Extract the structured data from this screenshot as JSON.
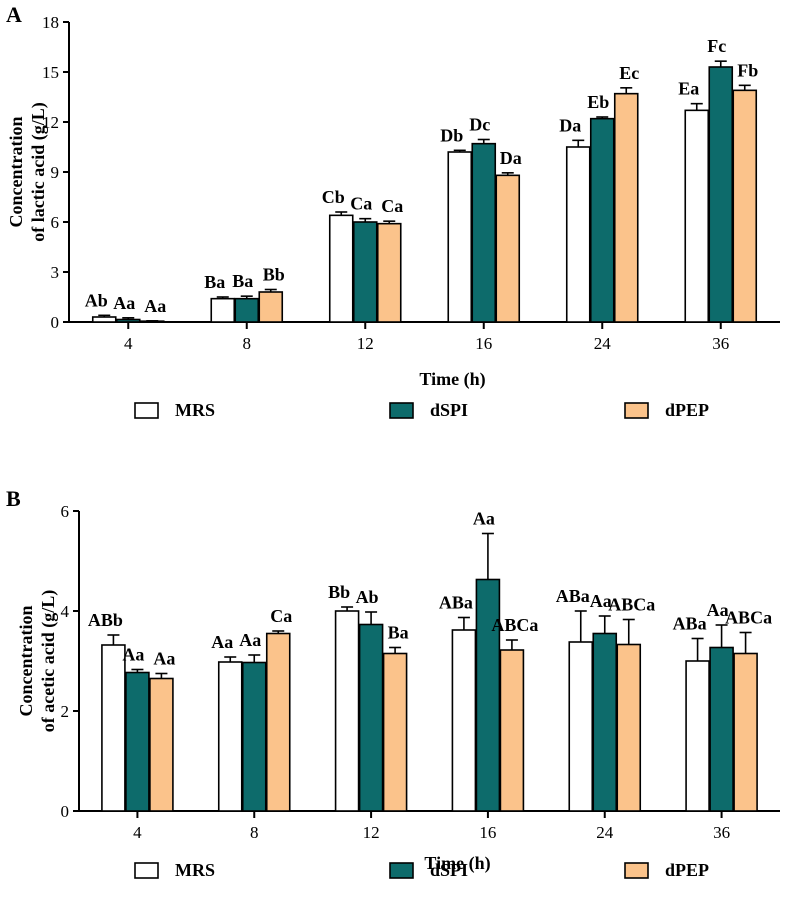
{
  "chart_data": [
    {
      "type": "bar",
      "panel": "A",
      "categories": [
        "4",
        "8",
        "12",
        "16",
        "24",
        "36"
      ],
      "xlabel": "Time (h)",
      "ylabel_line1": "Concentration",
      "ylabel_line2": "of lactic acid (g/L)",
      "ylim": [
        0,
        18
      ],
      "yticks": [
        0,
        3,
        6,
        9,
        12,
        15,
        18
      ],
      "series": [
        {
          "name": "MRS",
          "color": "#ffffff",
          "values": [
            0.3,
            1.4,
            6.4,
            10.2,
            10.5,
            12.7
          ],
          "errors": [
            0.1,
            0.1,
            0.2,
            0.1,
            0.4,
            0.4
          ],
          "labels": [
            "Ab",
            "Ba",
            "Cb",
            "Db",
            "Da",
            "Ea"
          ]
        },
        {
          "name": "dSPI",
          "color": "#0d6b6b",
          "values": [
            0.15,
            1.4,
            6.0,
            10.7,
            12.2,
            15.3
          ],
          "errors": [
            0.1,
            0.15,
            0.2,
            0.25,
            0.1,
            0.35
          ],
          "labels": [
            "Aa",
            "Ba",
            "Ca",
            "Dc",
            "Eb",
            "Fc"
          ]
        },
        {
          "name": "dPEP",
          "color": "#fbc38b",
          "values": [
            0.05,
            1.8,
            5.9,
            8.8,
            13.7,
            13.9
          ],
          "errors": [
            0.02,
            0.15,
            0.15,
            0.15,
            0.35,
            0.3
          ],
          "labels": [
            "Aa",
            "Bb",
            "Ca",
            "Da",
            "Ec",
            "Fb"
          ]
        }
      ],
      "legend": [
        "MRS",
        "dSPI",
        "dPEP"
      ],
      "legend_position": "bottom"
    },
    {
      "type": "bar",
      "panel": "B",
      "categories": [
        "4",
        "8",
        "12",
        "16",
        "24",
        "36"
      ],
      "xlabel": "Time (h)",
      "ylabel_line1": "Concentration",
      "ylabel_line2": "of acetic acid (g/L)",
      "ylim": [
        0,
        6
      ],
      "yticks": [
        0,
        2,
        4,
        6
      ],
      "series": [
        {
          "name": "MRS",
          "color": "#ffffff",
          "values": [
            3.32,
            2.98,
            4.0,
            3.62,
            3.38,
            3.0
          ],
          "errors": [
            0.2,
            0.1,
            0.08,
            0.25,
            0.62,
            0.45
          ],
          "labels": [
            "ABb",
            "Aa",
            "Bb",
            "ABa",
            "ABa",
            "ABa"
          ]
        },
        {
          "name": "dSPI",
          "color": "#0d6b6b",
          "values": [
            2.77,
            2.97,
            3.73,
            4.63,
            3.55,
            3.27
          ],
          "errors": [
            0.06,
            0.15,
            0.25,
            0.92,
            0.35,
            0.45
          ],
          "labels": [
            "Aa",
            "Aa",
            "Ab",
            "Aa",
            "Aa",
            "Aa"
          ]
        },
        {
          "name": "dPEP",
          "color": "#fbc38b",
          "values": [
            2.65,
            3.55,
            3.15,
            3.22,
            3.33,
            3.15
          ],
          "errors": [
            0.1,
            0.05,
            0.12,
            0.2,
            0.5,
            0.42
          ],
          "labels": [
            "Aa",
            "Ca",
            "Ba",
            "ABCa",
            "ABCa",
            "ABCa"
          ]
        }
      ],
      "legend": [
        "MRS",
        "dSPI",
        "dPEP"
      ],
      "legend_position": "bottom"
    }
  ]
}
